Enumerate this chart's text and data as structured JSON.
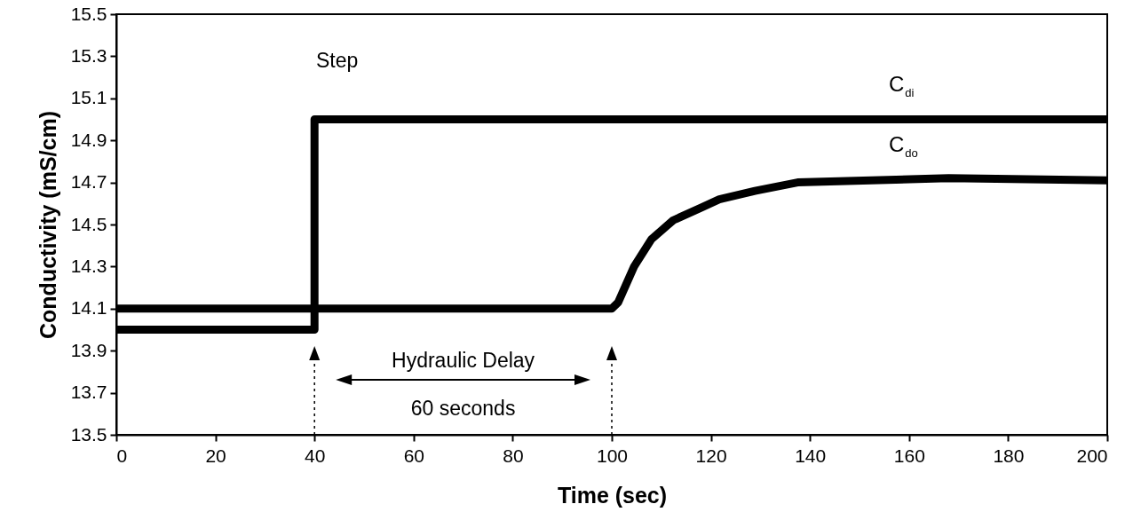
{
  "chart_data": {
    "type": "line",
    "xlabel": "Time (sec)",
    "ylabel": "Conductivity (mS/cm)",
    "xlim": [
      0,
      200
    ],
    "xticks": [
      0,
      20,
      40,
      60,
      80,
      100,
      120,
      140,
      160,
      180,
      200
    ],
    "ylim": [
      13.5,
      15.5
    ],
    "yticks": [
      13.5,
      13.7,
      13.9,
      14.1,
      14.3,
      14.5,
      14.7,
      14.9,
      15.1,
      15.3,
      15.5
    ],
    "grid": false,
    "legend": false,
    "line_style": "solid",
    "marker": "none",
    "series": [
      {
        "name": "C$_{di}$",
        "color": "#000000",
        "x": [
          0,
          40,
          40,
          200
        ],
        "values": [
          14.0,
          14.0,
          15.0,
          15.0
        ]
      },
      {
        "name": "C$_{do}$",
        "color": "#000000",
        "x": [
          0,
          100,
          101.3,
          104.5,
          108,
          112.4,
          118,
          121.7,
          128.9,
          137.5,
          168,
          200
        ],
        "values": [
          14.1,
          14.1,
          14.13,
          14.3,
          14.43,
          14.52,
          14.58,
          14.62,
          14.66,
          14.7,
          14.72,
          14.71
        ]
      }
    ],
    "ref_lines": [
      {
        "axis": "x",
        "value": 40,
        "color": "#000000",
        "line_style": "dotted"
      },
      {
        "axis": "x",
        "value": 100,
        "color": "#000000",
        "line_style": "dotted"
      }
    ],
    "annotations": [
      "Step",
      "Hydraulic Delay",
      "60 seconds"
    ]
  }
}
